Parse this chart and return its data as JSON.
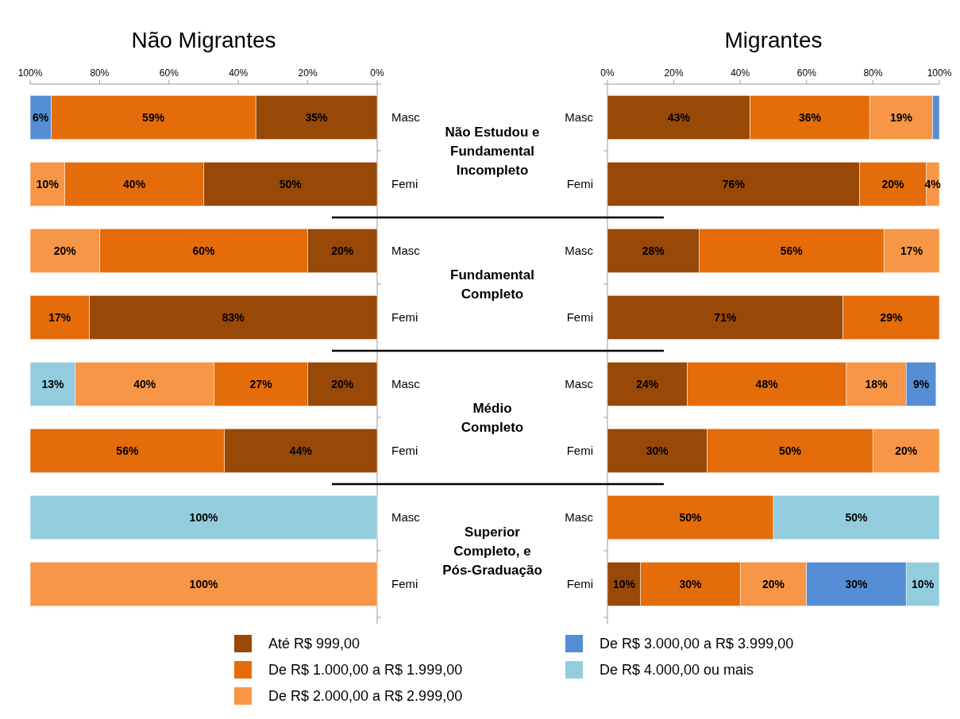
{
  "chart_data": [
    {
      "type": "bar",
      "orientation": "horizontal",
      "stacked": true,
      "title": "Não Migrantes",
      "categories": [
        "Masc",
        "Femi",
        "Masc",
        "Femi",
        "Masc",
        "Femi",
        "Masc",
        "Femi"
      ],
      "xlim": [
        100,
        0
      ],
      "xticks": [
        {
          "value": 100,
          "label": "100%"
        },
        {
          "value": 80,
          "label": "80%"
        },
        {
          "value": 60,
          "label": "60%"
        },
        {
          "value": 40,
          "label": "40%"
        },
        {
          "value": 20,
          "label": "20%"
        },
        {
          "value": 0,
          "label": "0%"
        }
      ],
      "legend": "bottom",
      "annotations": [
        "Não Estudou e Fundamental Incompleto",
        "Fundamental Completo",
        "Médio Completo",
        "Superior Completo, e Pós-Graduação"
      ],
      "series": [
        {
          "name": "Até R$ 999,00",
          "color": "#984807",
          "values": [
            35,
            50,
            20,
            83,
            20,
            44,
            null,
            null
          ],
          "value_labels": [
            "35%",
            "50%",
            "20%",
            "83%",
            "20%",
            "44%",
            null,
            null
          ]
        },
        {
          "name": "De R$ 1.000,00 a R$ 1.999,00",
          "color": "#e46c0a",
          "values": [
            59,
            40,
            60,
            17,
            27,
            56,
            null,
            null
          ],
          "value_labels": [
            "59%",
            "40%",
            "60%",
            "17%",
            "27%",
            "56%",
            null,
            null
          ]
        },
        {
          "name": "De R$ 2.000,00 a R$ 2.999,00",
          "color": "#f79646",
          "values": [
            null,
            10,
            20,
            null,
            40,
            null,
            null,
            100
          ],
          "value_labels": [
            null,
            "10%",
            "20%",
            null,
            "40%",
            null,
            null,
            "100%"
          ]
        },
        {
          "name": "De R$ 3.000,00 a R$ 3.999,00",
          "color": "#558ed5",
          "values": [
            6,
            null,
            null,
            null,
            null,
            null,
            null,
            null
          ],
          "value_labels": [
            "6%",
            null,
            null,
            null,
            null,
            null,
            null,
            null
          ]
        },
        {
          "name": "De R$ 4.000,00 ou mais",
          "color": "#93cddd",
          "values": [
            null,
            null,
            null,
            null,
            13,
            null,
            100,
            null
          ],
          "value_labels": [
            null,
            null,
            null,
            null,
            "13%",
            null,
            "100%",
            null
          ]
        }
      ]
    },
    {
      "type": "bar",
      "orientation": "horizontal",
      "stacked": true,
      "title": "Migrantes",
      "categories": [
        "Masc",
        "Femi",
        "Masc",
        "Femi",
        "Masc",
        "Femi",
        "Masc",
        "Femi"
      ],
      "xlim": [
        0,
        100
      ],
      "xticks": [
        {
          "value": 0,
          "label": "0%"
        },
        {
          "value": 20,
          "label": "20%"
        },
        {
          "value": 40,
          "label": "40%"
        },
        {
          "value": 60,
          "label": "60%"
        },
        {
          "value": 80,
          "label": "80%"
        },
        {
          "value": 100,
          "label": "100%"
        }
      ],
      "series": [
        {
          "color": "#984807",
          "values": [
            43,
            76,
            27.6,
            71,
            24,
            30,
            null,
            10
          ],
          "value_labels": [
            "43%",
            "76%",
            "28%",
            "71%",
            "24%",
            "30%",
            null,
            "10%"
          ]
        },
        {
          "color": "#e46c0a",
          "values": [
            36,
            20,
            55.7,
            29,
            48,
            50,
            50,
            30
          ],
          "value_labels": [
            "36%",
            "20%",
            "56%",
            "29%",
            "48%",
            "50%",
            "50%",
            "30%"
          ]
        },
        {
          "color": "#f79646",
          "values": [
            19,
            4,
            16.7,
            null,
            18,
            20,
            null,
            20
          ],
          "value_labels": [
            "19%",
            "4%",
            "17%",
            null,
            "18%",
            "20%",
            null,
            "20%"
          ]
        },
        {
          "color": "#558ed5",
          "values": [
            2,
            null,
            null,
            null,
            9,
            null,
            null,
            30
          ],
          "value_labels": [
            null,
            null,
            null,
            null,
            "9%",
            null,
            null,
            "30%"
          ]
        },
        {
          "color": "#93cddd",
          "values": [
            null,
            null,
            null,
            null,
            null,
            null,
            50,
            10
          ],
          "value_labels": [
            null,
            null,
            null,
            null,
            null,
            null,
            "50%",
            "10%"
          ]
        }
      ]
    }
  ]
}
